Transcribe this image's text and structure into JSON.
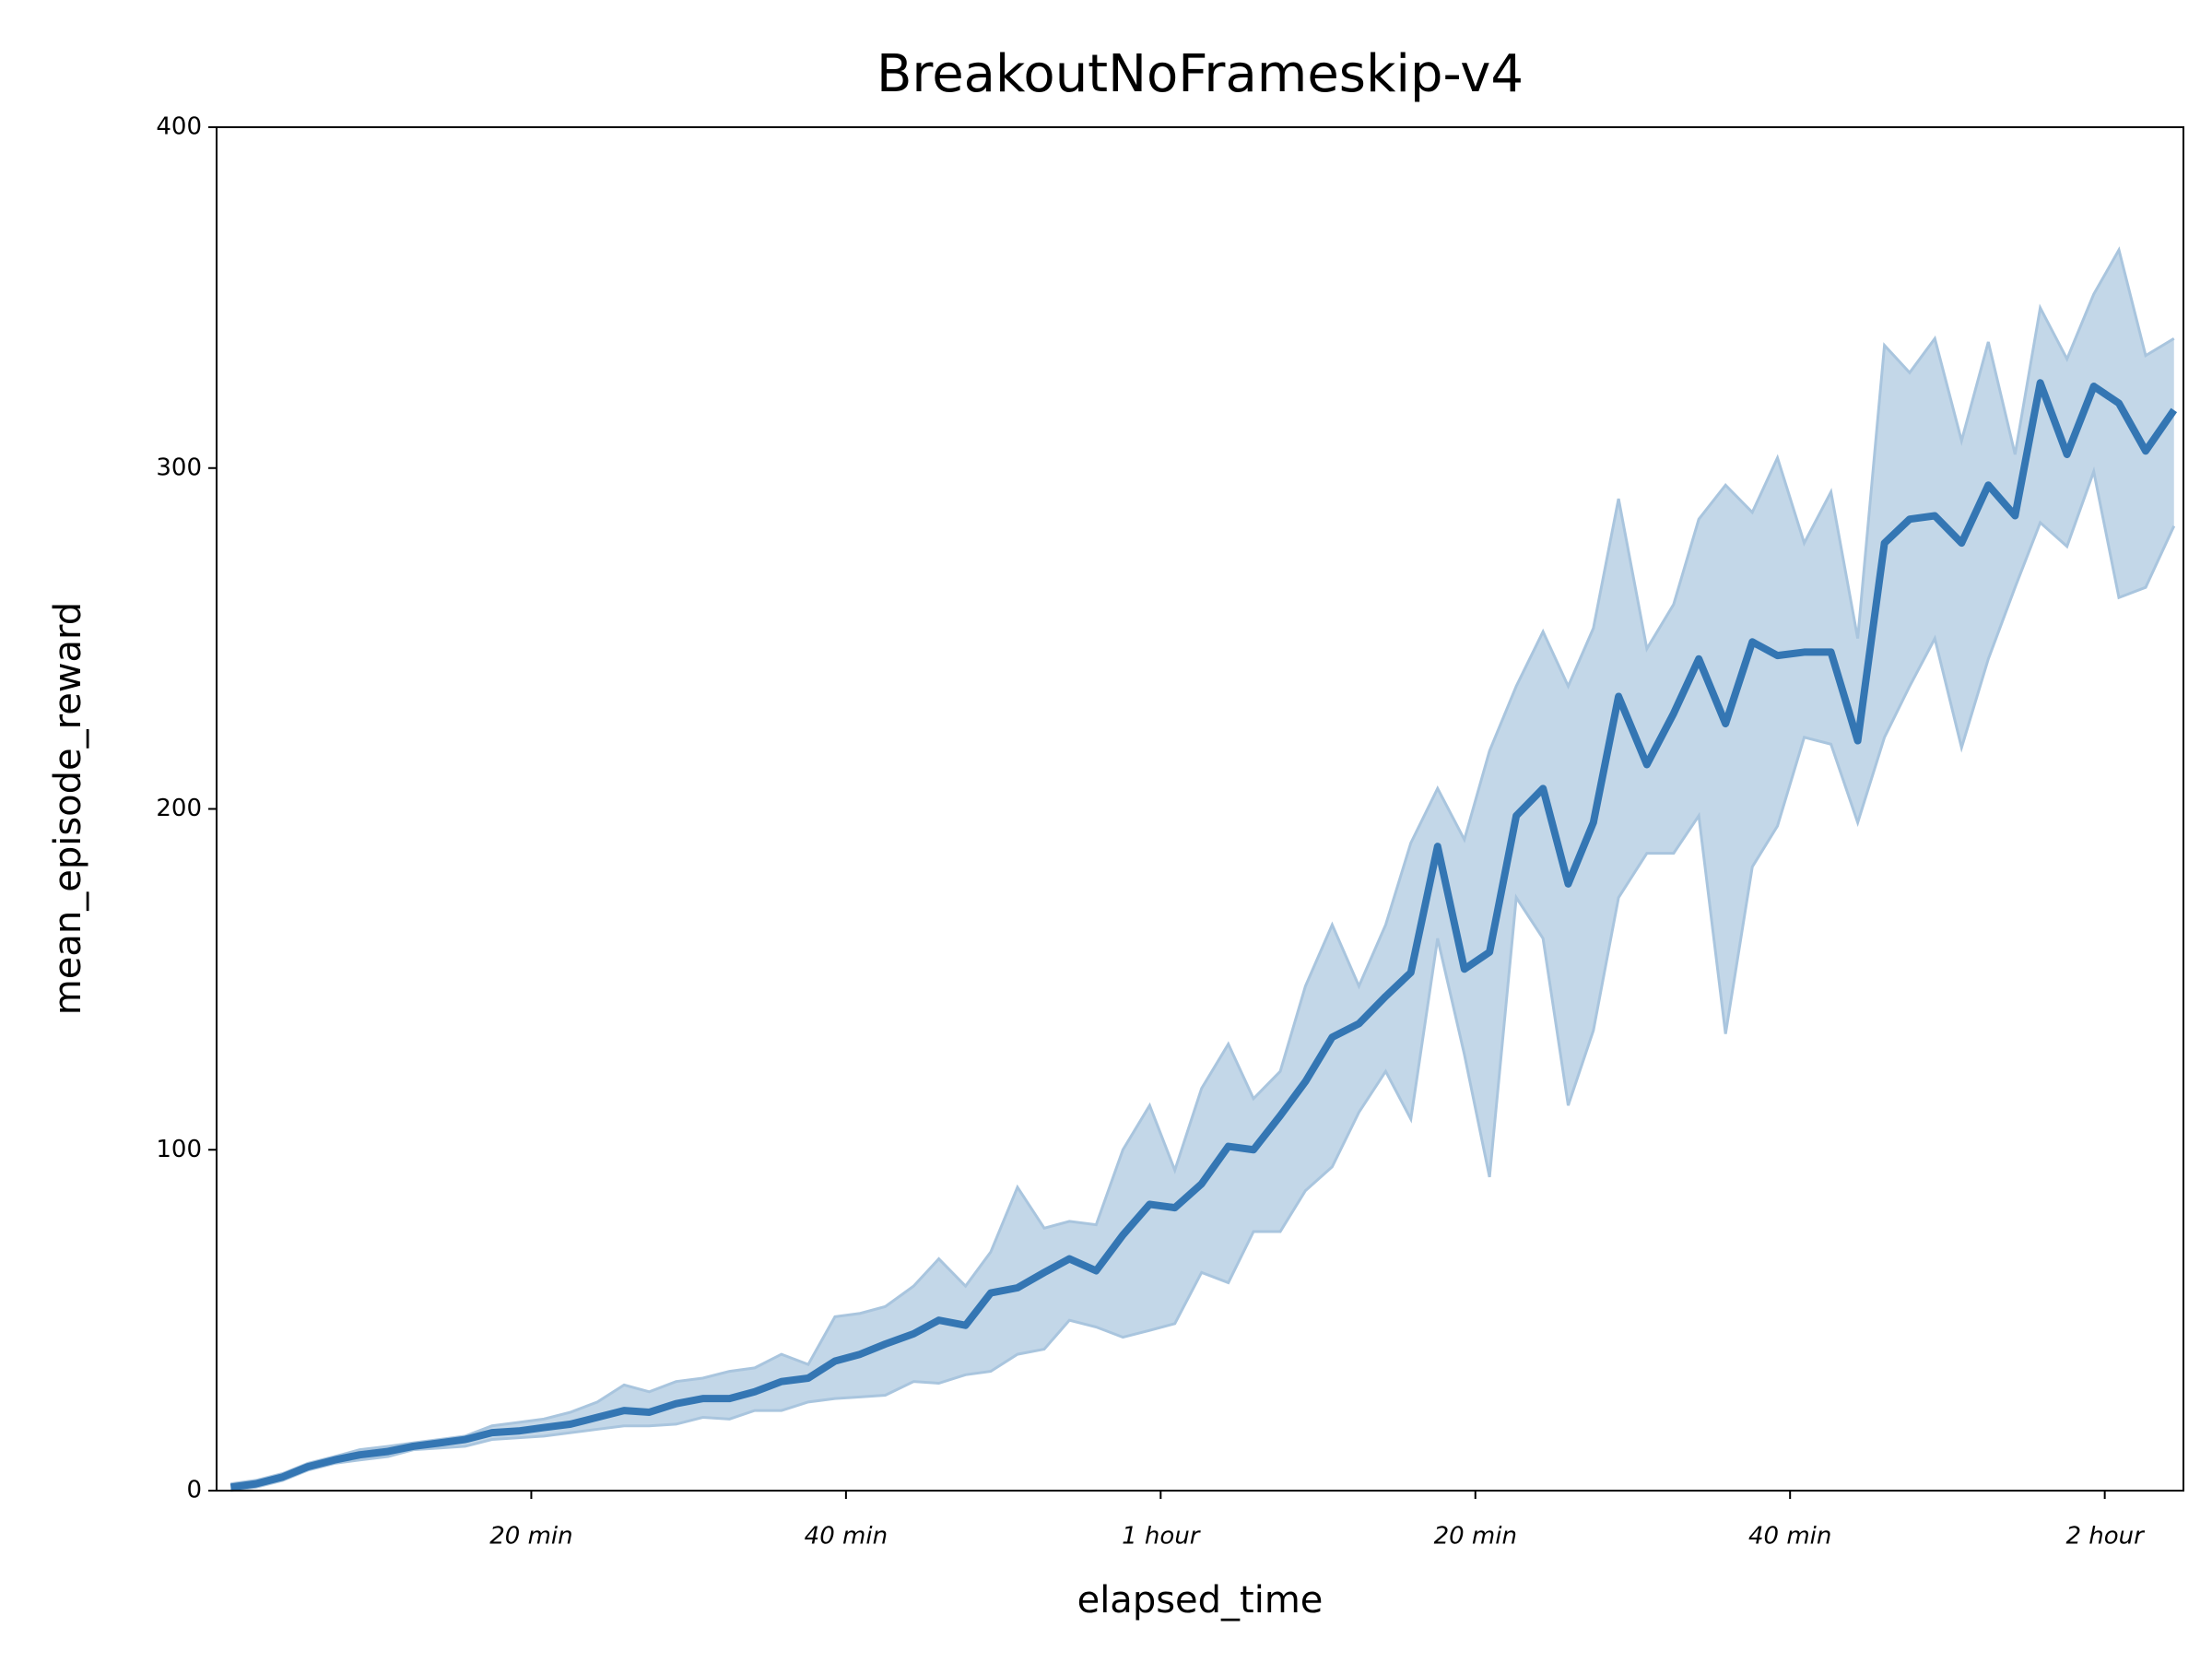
{
  "chart_data": {
    "type": "line",
    "title": "BreakoutNoFrameskip-v4",
    "x_label": "elapsed_time",
    "y_label": "mean_episode_reward",
    "xlim": [
      0,
      125
    ],
    "ylim": [
      0,
      400
    ],
    "xticks": [
      {
        "value": 20,
        "label": "20 min"
      },
      {
        "value": 40,
        "label": "40 min"
      },
      {
        "value": 60,
        "label": "1 hour"
      },
      {
        "value": 80,
        "label": "20 min"
      },
      {
        "value": 100,
        "label": "40 min"
      },
      {
        "value": 120,
        "label": "2 hour"
      }
    ],
    "yticks": [
      0,
      100,
      200,
      300,
      400
    ],
    "x": [
      0.9,
      2.5,
      4.2,
      5.8,
      7.5,
      9.1,
      10.9,
      12.5,
      14.2,
      15.8,
      17.5,
      19.2,
      20.8,
      22.5,
      24.2,
      25.9,
      27.5,
      29.2,
      30.9,
      32.6,
      34.2,
      35.9,
      37.6,
      39.3,
      40.9,
      42.5,
      44.3,
      45.9,
      47.6,
      49.2,
      50.9,
      52.6,
      54.2,
      55.9,
      57.6,
      59.3,
      60.9,
      62.6,
      64.3,
      65.9,
      67.6,
      69.2,
      70.9,
      72.6,
      74.3,
      75.9,
      77.6,
      79.3,
      80.9,
      82.6,
      84.3,
      85.9,
      87.5,
      89.1,
      90.9,
      92.6,
      94.2,
      95.9,
      97.6,
      99.2,
      100.9,
      102.6,
      104.3,
      106.0,
      107.6,
      109.2,
      110.9,
      112.6,
      114.3,
      115.9,
      117.6,
      119.3,
      120.9,
      122.6,
      124.4
    ],
    "series": [
      {
        "color": "#3476b3",
        "band_color": "#c3d7e8",
        "band_edge": "#a9c5de",
        "values": [
          1,
          2,
          4,
          7,
          9,
          10.5,
          11.5,
          13,
          14,
          15,
          17,
          17.5,
          18.5,
          19.5,
          21.5,
          23.5,
          23,
          25.5,
          27,
          27,
          29,
          32,
          33,
          38,
          40,
          43,
          46,
          50,
          48.5,
          58,
          59.5,
          64,
          68,
          64.5,
          75,
          84,
          83,
          90,
          101,
          100,
          110,
          120,
          133,
          137,
          145,
          152,
          189,
          153,
          158,
          198,
          206,
          178,
          196,
          233,
          213,
          228,
          244,
          225,
          249,
          245,
          246,
          246,
          220,
          278,
          285,
          286,
          278,
          295,
          286,
          325,
          304,
          324,
          319,
          305,
          317
        ],
        "lower": [
          0,
          1,
          3,
          6,
          8,
          9,
          10,
          12,
          12.5,
          13,
          15,
          15.5,
          16,
          17,
          18,
          19,
          19,
          19.5,
          21.5,
          21,
          23.5,
          23.5,
          26,
          27,
          27.5,
          28,
          32,
          31.5,
          34,
          35,
          40,
          41.5,
          50,
          48,
          45,
          47,
          49,
          64,
          61,
          76,
          76,
          88,
          95,
          111,
          123,
          109,
          162,
          128,
          92,
          174,
          162,
          113,
          135,
          174,
          187,
          187,
          198,
          134,
          183,
          195,
          221,
          219,
          196,
          221,
          236,
          250,
          218,
          244,
          265,
          284,
          277,
          299,
          262,
          265,
          283
        ],
        "upper": [
          2,
          3,
          5,
          8,
          10,
          12,
          13,
          14,
          15,
          16,
          19,
          20,
          21,
          23,
          26,
          31,
          29,
          32,
          33,
          35,
          36,
          40,
          37,
          51,
          52,
          54,
          60,
          68,
          60,
          70,
          89,
          77,
          79,
          78,
          100,
          113,
          94,
          118,
          131,
          115,
          123,
          148,
          166,
          148,
          166,
          190,
          206,
          191,
          217,
          236,
          252,
          236,
          253,
          291,
          247,
          260,
          285,
          295,
          287,
          303,
          278,
          293,
          250,
          336,
          328,
          338,
          308,
          337,
          304,
          347,
          332,
          351,
          364,
          333,
          338
        ]
      }
    ]
  }
}
